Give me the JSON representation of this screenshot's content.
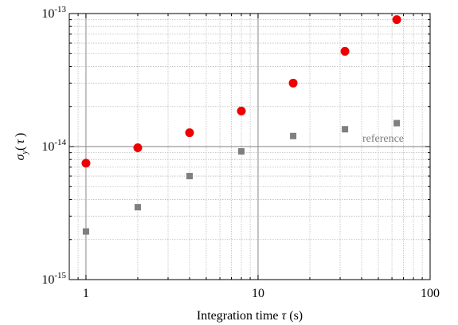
{
  "chart_data": {
    "type": "scatter",
    "x_scale": "log",
    "y_scale": "log",
    "xlim": [
      0.8,
      100
    ],
    "ylim": [
      1e-15,
      1e-13
    ],
    "grid": true,
    "x_ticks": [
      {
        "value": 1,
        "label": "1"
      },
      {
        "value": 10,
        "label": "10"
      },
      {
        "value": 100,
        "label": "100"
      }
    ],
    "y_ticks": [
      {
        "value": 1e-15,
        "base": "10",
        "exp": "-15"
      },
      {
        "value": 1e-14,
        "base": "10",
        "exp": "-14"
      },
      {
        "value": 1e-13,
        "base": "10",
        "exp": "-13"
      }
    ],
    "xlabel": {
      "prefix": "Integration time ",
      "symbol": "τ",
      "suffix": " (s)"
    },
    "ylabel": {
      "symbol": "σ",
      "sub": "y",
      "open": "(",
      "arg": "τ",
      "close": ")"
    },
    "reference": {
      "label": "reference",
      "y": 1e-14,
      "color": "#808080"
    },
    "series": [
      {
        "marker": "circle",
        "color": "#ee0000",
        "x": [
          1,
          2,
          4,
          8,
          16,
          32,
          64
        ],
        "y": [
          7.5e-15,
          9.8e-15,
          1.27e-14,
          1.85e-14,
          3e-14,
          5.2e-14,
          9e-14
        ]
      },
      {
        "marker": "square",
        "color": "#7f7f7f",
        "x": [
          1,
          2,
          4,
          8,
          16,
          32,
          64
        ],
        "y": [
          2.3e-15,
          3.5e-15,
          6e-15,
          9.2e-15,
          1.2e-14,
          1.35e-14,
          1.5e-14
        ]
      }
    ]
  }
}
